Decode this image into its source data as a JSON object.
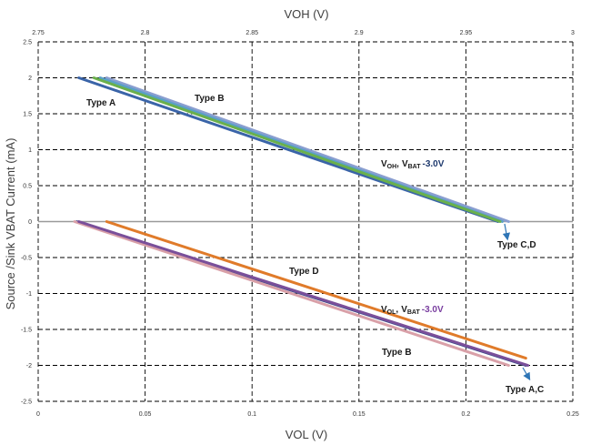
{
  "chart_data": {
    "type": "line",
    "x_top_label": "VOH (V)",
    "x_bottom_label": "VOL (V)",
    "y_label": "Source /Sink VBAT Current (mA)",
    "x_top_range": [
      2.75,
      3
    ],
    "x_bottom_range": [
      0,
      0.25
    ],
    "y_range": [
      -2.5,
      2.5
    ],
    "x_top_ticks": [
      "2.75",
      "2.8",
      "2.85",
      "2.9",
      "2.95",
      "3"
    ],
    "x_bottom_ticks": [
      "0",
      "0.05",
      "0.1",
      "0.15",
      "0.2",
      "0.25"
    ],
    "y_ticks": [
      "2.5",
      "2",
      "1.5",
      "1",
      "0.5",
      "0",
      "-0.5",
      "-1",
      "-1.5",
      "-2",
      "-2.5"
    ],
    "grid": true,
    "voh_series": [
      {
        "name": "Type A",
        "axis": "top",
        "color": "#3a64a8",
        "x": [
          2.769,
          2.965
        ],
        "y": [
          2.0,
          0.0
        ]
      },
      {
        "name": "Type B",
        "axis": "top",
        "color": "#8a9ed0",
        "x": [
          2.782,
          2.97
        ],
        "y": [
          2.0,
          0.0
        ]
      },
      {
        "name": "Type C",
        "axis": "top",
        "color": "#5aa0c8",
        "x": [
          2.779,
          2.967
        ],
        "y": [
          2.0,
          0.0
        ]
      },
      {
        "name": "Type D",
        "axis": "top",
        "color": "#6ab04c",
        "x": [
          2.776,
          2.966
        ],
        "y": [
          2.0,
          0.0
        ]
      }
    ],
    "vol_series": [
      {
        "name": "Type A",
        "axis": "bottom",
        "color": "#3a4a8a",
        "x": [
          0.018,
          0.228
        ],
        "y": [
          0.0,
          -2.0
        ]
      },
      {
        "name": "Type B",
        "axis": "bottom",
        "color": "#d9a0a8",
        "x": [
          0.017,
          0.22
        ],
        "y": [
          0.0,
          -2.0
        ]
      },
      {
        "name": "Type C",
        "axis": "bottom",
        "color": "#7a4f9a",
        "x": [
          0.019,
          0.229
        ],
        "y": [
          0.0,
          -2.0
        ]
      },
      {
        "name": "Type D",
        "axis": "bottom",
        "color": "#e07b2a",
        "x": [
          0.032,
          0.228
        ],
        "y": [
          0.0,
          -1.9
        ]
      }
    ],
    "annotations": {
      "voh_type_a": "Type A",
      "voh_type_b": "Type B",
      "voh_type_cd": "Type C,D",
      "voh_cond": {
        "v": "V",
        "sub1": "OH",
        "comma": ",",
        "v2": "V",
        "sub2": "BAT",
        "value": "-3.0V"
      },
      "vol_type_d": "Type D",
      "vol_type_b": "Type B",
      "vol_type_ac": "Type A,C",
      "vol_cond": {
        "v": "V",
        "sub1": "OL",
        "comma": ",",
        "v2": "V",
        "sub2": "BAT",
        "value": "-3.0V"
      },
      "voh_cond_value_color": "#1f3a6e",
      "vol_cond_value_color": "#7a3fa0",
      "arrow_color": "#2e75b6"
    }
  }
}
